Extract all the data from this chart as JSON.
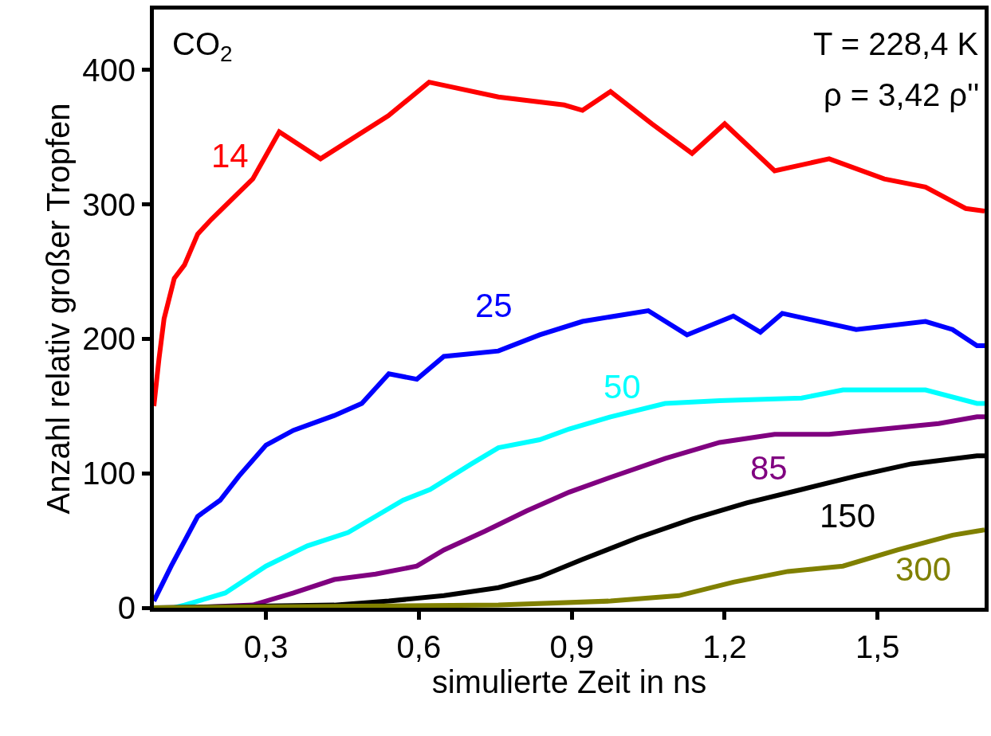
{
  "chart_data": {
    "type": "line",
    "xlabel": "simulierte Zeit in ns",
    "ylabel": "Anzahl relativ großer Tropfen",
    "xlim": [
      0.08,
      1.71
    ],
    "ylim": [
      0,
      445
    ],
    "xticks": [
      {
        "value": 0.3,
        "label": "0,3"
      },
      {
        "value": 0.6,
        "label": "0,6"
      },
      {
        "value": 0.9,
        "label": "0,9"
      },
      {
        "value": 1.2,
        "label": "1,2"
      },
      {
        "value": 1.5,
        "label": "1,5"
      }
    ],
    "yticks": [
      0,
      100,
      200,
      300,
      400
    ],
    "legend": false,
    "marker": "none",
    "line_style": "solid",
    "annotations": [
      "CO$_{2}$",
      "T = 228,4 K",
      "ρ = 3,42 ρ''"
    ],
    "series": [
      {
        "name": "14",
        "color": "#ff0000",
        "x": [
          0.08,
          0.09,
          0.1,
          0.12,
          0.14,
          0.166,
          0.193,
          0.274,
          0.326,
          0.407,
          0.54,
          0.62,
          0.756,
          0.885,
          0.921,
          0.976,
          1.057,
          1.136,
          1.2,
          1.298,
          1.405,
          1.513,
          1.594,
          1.673,
          1.71
        ],
        "values": [
          150,
          185,
          215,
          245,
          255,
          278,
          289,
          319,
          354,
          334,
          366,
          391,
          380,
          374,
          370,
          384,
          360,
          338,
          360,
          325,
          334,
          319,
          313,
          297,
          295
        ]
      },
      {
        "name": "25",
        "color": "#0000ff",
        "x": [
          0.08,
          0.114,
          0.166,
          0.21,
          0.247,
          0.3,
          0.354,
          0.434,
          0.488,
          0.541,
          0.596,
          0.649,
          0.756,
          0.837,
          0.921,
          1.05,
          1.126,
          1.217,
          1.27,
          1.313,
          1.458,
          1.594,
          1.647,
          1.695,
          1.71
        ],
        "values": [
          5,
          31,
          68,
          80,
          98,
          121,
          132,
          143,
          152,
          174,
          170,
          187,
          191,
          203,
          213,
          221,
          203,
          217,
          205,
          219,
          207,
          213,
          207,
          195,
          195
        ]
      },
      {
        "name": "50",
        "color": "#00ffff",
        "x": [
          0.08,
          0.12,
          0.14,
          0.22,
          0.3,
          0.381,
          0.461,
          0.515,
          0.569,
          0.622,
          0.703,
          0.756,
          0.837,
          0.895,
          0.976,
          1.083,
          1.19,
          1.351,
          1.432,
          1.594,
          1.695,
          1.71
        ],
        "values": [
          0,
          0,
          2,
          11,
          31,
          46,
          56,
          68,
          80,
          88,
          107,
          119,
          125,
          133,
          142,
          152,
          154,
          156,
          162,
          162,
          152,
          152
        ]
      },
      {
        "name": "85",
        "color": "#800080",
        "x": [
          0.08,
          0.15,
          0.274,
          0.354,
          0.434,
          0.515,
          0.596,
          0.649,
          0.73,
          0.811,
          0.895,
          0.976,
          1.083,
          1.19,
          1.298,
          1.405,
          1.513,
          1.62,
          1.695,
          1.71
        ],
        "values": [
          0,
          0,
          2,
          11,
          21,
          25,
          31,
          43,
          57,
          72,
          86,
          97,
          111,
          123,
          129,
          129,
          133,
          137,
          142,
          142
        ]
      },
      {
        "name": "150",
        "color": "#000000",
        "x": [
          0.08,
          0.434,
          0.541,
          0.649,
          0.756,
          0.837,
          0.921,
          1.029,
          1.136,
          1.243,
          1.351,
          1.458,
          1.566,
          1.695,
          1.71
        ],
        "values": [
          0,
          2,
          5,
          9,
          15,
          23,
          36,
          52,
          66,
          78,
          88,
          98,
          107,
          113,
          113
        ]
      },
      {
        "name": "300",
        "color": "#808000",
        "x": [
          0.08,
          0.756,
          0.976,
          1.11,
          1.217,
          1.324,
          1.432,
          1.539,
          1.647,
          1.695,
          1.71
        ],
        "values": [
          0,
          2,
          5,
          9,
          19,
          27,
          31,
          43,
          54,
          57,
          58
        ]
      }
    ]
  }
}
